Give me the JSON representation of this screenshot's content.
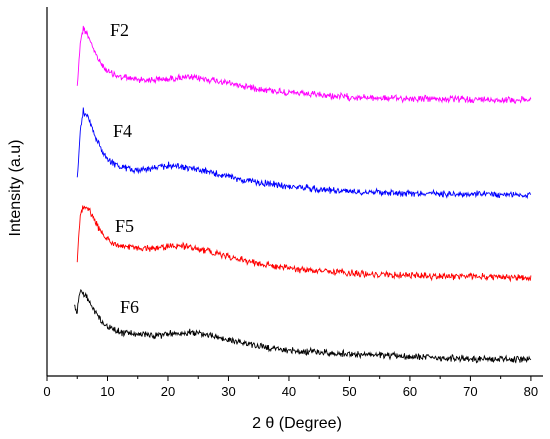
{
  "chart_data": {
    "type": "line",
    "title": "",
    "xlabel": "2 θ (Degree)",
    "ylabel": "Intensity (a.u)",
    "xlim": [
      0,
      82
    ],
    "x_ticks": [
      "0",
      "10",
      "20",
      "30",
      "40",
      "50",
      "60",
      "70",
      "80"
    ],
    "y_tick_labels": false,
    "grid": false,
    "legend": "none",
    "series": [
      {
        "name": "F2",
        "color": "#ff00ff",
        "points": [
          [
            5,
            0.3
          ],
          [
            5.5,
            1.2
          ],
          [
            6,
            1.5
          ],
          [
            7,
            1.3
          ],
          [
            8,
            0.95
          ],
          [
            9,
            0.75
          ],
          [
            10,
            0.6
          ],
          [
            12,
            0.48
          ],
          [
            15,
            0.43
          ],
          [
            18,
            0.42
          ],
          [
            20,
            0.44
          ],
          [
            22,
            0.47
          ],
          [
            24,
            0.46
          ],
          [
            26,
            0.44
          ],
          [
            28,
            0.4
          ],
          [
            30,
            0.35
          ],
          [
            33,
            0.28
          ],
          [
            36,
            0.22
          ],
          [
            40,
            0.15
          ],
          [
            45,
            0.1
          ],
          [
            50,
            0.06
          ],
          [
            55,
            0.04
          ],
          [
            60,
            0.03
          ],
          [
            65,
            0.02
          ],
          [
            70,
            0.01
          ],
          [
            75,
            0.005
          ],
          [
            80,
            0
          ]
        ]
      },
      {
        "name": "F4",
        "color": "#0000ff",
        "points": [
          [
            5,
            0.35
          ],
          [
            5.5,
            1.3
          ],
          [
            6,
            1.75
          ],
          [
            7,
            1.55
          ],
          [
            8,
            1.2
          ],
          [
            9,
            0.95
          ],
          [
            10,
            0.75
          ],
          [
            12,
            0.58
          ],
          [
            15,
            0.52
          ],
          [
            18,
            0.56
          ],
          [
            20,
            0.62
          ],
          [
            22,
            0.6
          ],
          [
            24,
            0.55
          ],
          [
            26,
            0.5
          ],
          [
            28,
            0.44
          ],
          [
            30,
            0.38
          ],
          [
            33,
            0.3
          ],
          [
            36,
            0.24
          ],
          [
            40,
            0.18
          ],
          [
            45,
            0.12
          ],
          [
            50,
            0.08
          ],
          [
            55,
            0.06
          ],
          [
            60,
            0.04
          ],
          [
            65,
            0.03
          ],
          [
            70,
            0.02
          ],
          [
            75,
            0.01
          ],
          [
            80,
            0
          ]
        ]
      },
      {
        "name": "F5",
        "color": "#ff0000",
        "points": [
          [
            5,
            0.4
          ],
          [
            5.5,
            1.3
          ],
          [
            6,
            1.5
          ],
          [
            7,
            1.4
          ],
          [
            8,
            1.15
          ],
          [
            9,
            0.95
          ],
          [
            10,
            0.8
          ],
          [
            12,
            0.66
          ],
          [
            15,
            0.62
          ],
          [
            18,
            0.62
          ],
          [
            20,
            0.66
          ],
          [
            22,
            0.67
          ],
          [
            24,
            0.64
          ],
          [
            26,
            0.58
          ],
          [
            28,
            0.52
          ],
          [
            30,
            0.44
          ],
          [
            33,
            0.36
          ],
          [
            36,
            0.28
          ],
          [
            40,
            0.2
          ],
          [
            45,
            0.14
          ],
          [
            50,
            0.1
          ],
          [
            55,
            0.07
          ],
          [
            60,
            0.05
          ],
          [
            65,
            0.04
          ],
          [
            70,
            0.03
          ],
          [
            75,
            0.015
          ],
          [
            80,
            0
          ]
        ]
      },
      {
        "name": "F6",
        "color": "#000000",
        "points": [
          [
            4.5,
            1.5
          ],
          [
            5,
            1.3
          ],
          [
            5.5,
            1.9
          ],
          [
            6,
            1.8
          ],
          [
            7,
            1.6
          ],
          [
            8,
            1.3
          ],
          [
            9,
            1.05
          ],
          [
            10,
            0.9
          ],
          [
            12,
            0.75
          ],
          [
            15,
            0.7
          ],
          [
            18,
            0.66
          ],
          [
            20,
            0.7
          ],
          [
            22,
            0.73
          ],
          [
            24,
            0.75
          ],
          [
            26,
            0.7
          ],
          [
            28,
            0.62
          ],
          [
            30,
            0.54
          ],
          [
            33,
            0.44
          ],
          [
            36,
            0.34
          ],
          [
            40,
            0.26
          ],
          [
            45,
            0.2
          ],
          [
            50,
            0.16
          ],
          [
            55,
            0.12
          ],
          [
            60,
            0.09
          ],
          [
            65,
            0.06
          ],
          [
            70,
            0.04
          ],
          [
            75,
            0.02
          ],
          [
            80,
            0
          ]
        ]
      }
    ]
  }
}
